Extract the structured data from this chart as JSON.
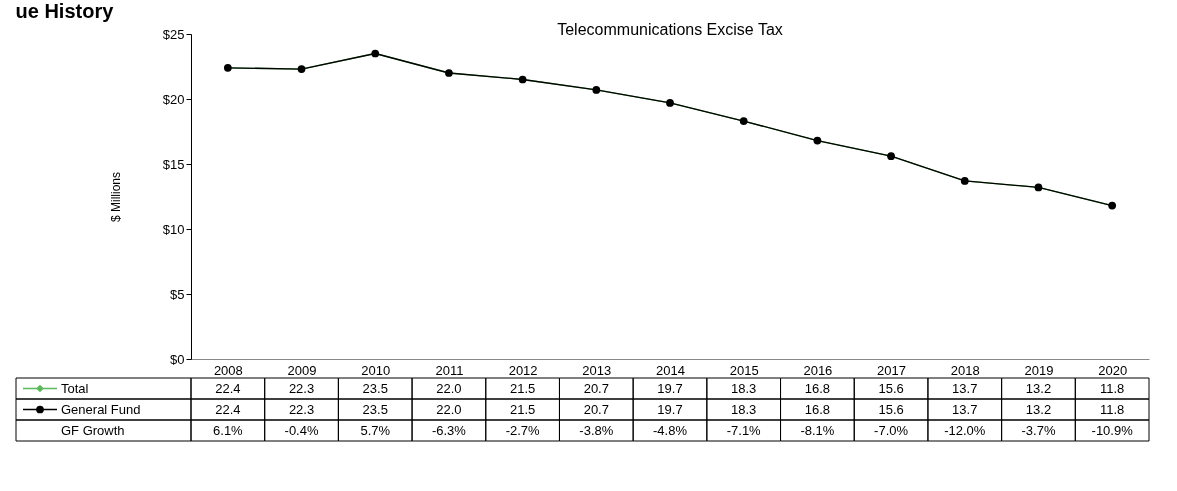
{
  "chart_data": {
    "type": "line",
    "title": "Telecommunications Excise Tax",
    "ylabel": "$ Millions",
    "categories": [
      "2008",
      "2009",
      "2010",
      "2011",
      "2012",
      "2013",
      "2014",
      "2015",
      "2016",
      "2017",
      "2018",
      "2019",
      "2020"
    ],
    "series": [
      {
        "name": "Total",
        "color": "#5cb85c",
        "marker": "diamond",
        "values": [
          22.4,
          22.3,
          23.5,
          22.0,
          21.5,
          20.7,
          19.7,
          18.3,
          16.8,
          15.6,
          13.7,
          13.2,
          11.8
        ],
        "value_labels": [
          "22.4",
          "22.3",
          "23.5",
          "22.0",
          "21.5",
          "20.7",
          "19.7",
          "18.3",
          "16.8",
          "15.6",
          "13.7",
          "13.2",
          "11.8"
        ]
      },
      {
        "name": "General Fund",
        "color": "#000000",
        "marker": "circle",
        "values": [
          22.4,
          22.3,
          23.5,
          22.0,
          21.5,
          20.7,
          19.7,
          18.3,
          16.8,
          15.6,
          13.7,
          13.2,
          11.8
        ],
        "value_labels": [
          "22.4",
          "22.3",
          "23.5",
          "22.0",
          "21.5",
          "20.7",
          "19.7",
          "18.3",
          "16.8",
          "15.6",
          "13.7",
          "13.2",
          "11.8"
        ]
      }
    ],
    "ylim": [
      0,
      25
    ],
    "yticks": [
      {
        "value": 0,
        "label": "$0"
      },
      {
        "value": 5,
        "label": "$5"
      },
      {
        "value": 10,
        "label": "$10"
      },
      {
        "value": 15,
        "label": "$15"
      },
      {
        "value": 20,
        "label": "$20"
      },
      {
        "value": 25,
        "label": "$25"
      }
    ],
    "grid": false,
    "legend": "bottom left",
    "annotations": [
      "ue History",
      "GF Growth",
      "6.1%",
      "-0.4%",
      "5.7%",
      "-6.3%",
      "-2.7%",
      "-3.8%",
      "-4.8%",
      "-7.1%",
      "-8.1%",
      "-7.0%",
      "-12.0%",
      "-3.7%",
      "-10.9%"
    ]
  }
}
